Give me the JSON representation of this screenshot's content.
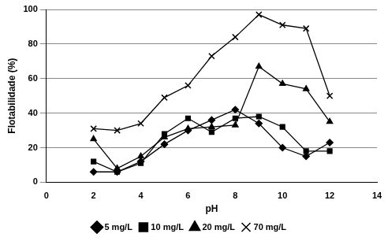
{
  "chart_data": {
    "type": "line",
    "x_label": "pH",
    "y_label": "Flotabilidade (%)",
    "x": [
      2,
      3,
      4,
      5,
      6,
      7,
      8,
      9,
      10,
      11,
      12
    ],
    "series": [
      {
        "name": "5 mg/L",
        "color": "#000000",
        "marker": "diamond",
        "values": [
          6,
          6,
          12,
          22,
          30,
          36,
          42,
          34,
          20,
          15,
          23
        ]
      },
      {
        "name": "10 mg/L",
        "color": "#000000",
        "marker": "square",
        "values": [
          12,
          6,
          11,
          28,
          37,
          29,
          37,
          38,
          32,
          18,
          18
        ]
      },
      {
        "name": "20 mg/L",
        "color": "#000000",
        "marker": "triangle",
        "values": [
          25,
          8,
          15,
          26,
          31,
          32,
          33,
          67,
          57,
          54,
          35
        ]
      },
      {
        "name": "70 mg/L",
        "color": "#000000",
        "marker": "x",
        "values": [
          31,
          30,
          34,
          49,
          56,
          73,
          84,
          97,
          91,
          89,
          50
        ]
      }
    ],
    "xlim": [
      0,
      14
    ],
    "xticks": [
      0,
      2,
      4,
      6,
      8,
      10,
      12,
      14
    ],
    "ylim": [
      0,
      100
    ],
    "yticks": [
      0,
      20,
      40,
      60,
      80,
      100
    ],
    "grid": "y",
    "legend": "bottom"
  }
}
